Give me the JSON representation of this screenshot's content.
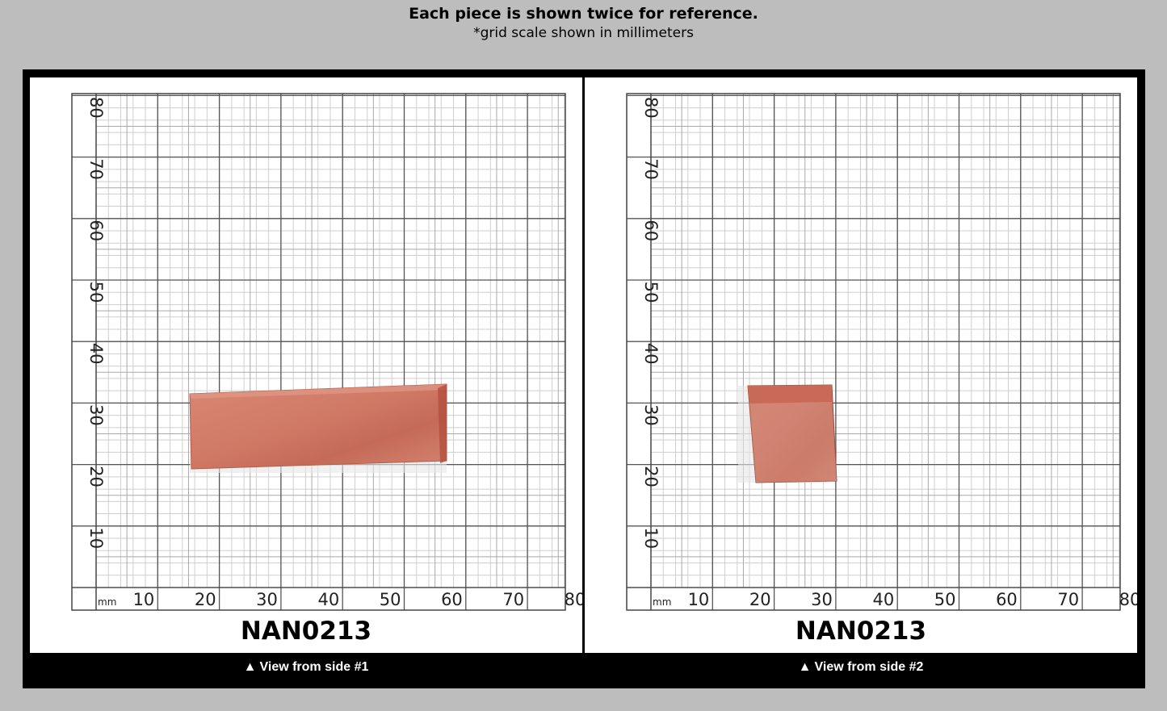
{
  "header": {
    "title": "Each piece is shown twice for reference.",
    "subtitle": "*grid scale shown in millimeters"
  },
  "grid": {
    "unit_label": "mm",
    "x_ticks": [
      "10",
      "20",
      "30",
      "40",
      "50",
      "60",
      "70",
      "80"
    ],
    "y_ticks": [
      "80",
      "70",
      "60",
      "50",
      "40",
      "30",
      "20",
      "10"
    ]
  },
  "panels": [
    {
      "label": "NAN0213",
      "caption": "View from side #1",
      "caption_icon": "up-triangle-icon",
      "piece_color": "#d07a66"
    },
    {
      "label": "NAN0213",
      "caption": "View from side #2",
      "caption_icon": "up-triangle-icon",
      "piece_color": "#d17a68"
    }
  ],
  "colors": {
    "background": "#bdbdbd",
    "frame": "#000000",
    "grid_major": "#555555",
    "grid_minor": "#cfcfcf"
  }
}
